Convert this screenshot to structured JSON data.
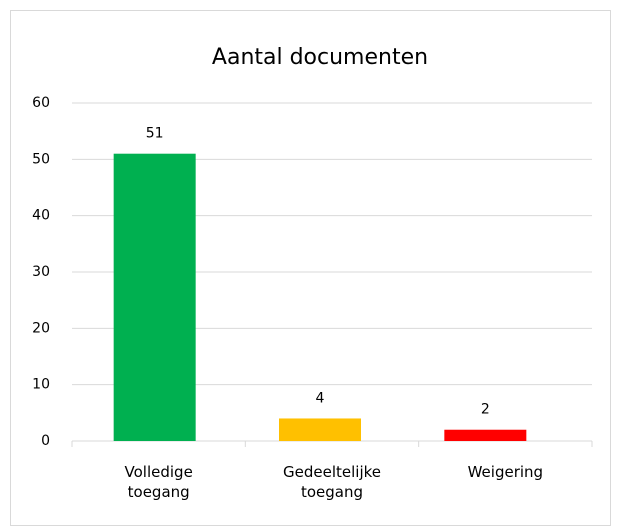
{
  "chart_data": {
    "type": "bar",
    "title": "Aantal documenten",
    "categories": [
      "Volledige toegang",
      "Gedeeltelijke toegang",
      "Weigering"
    ],
    "values": [
      51,
      4,
      2
    ],
    "colors": [
      "#00b050",
      "#ffc000",
      "#ff0000"
    ],
    "ylim": [
      0,
      60
    ],
    "yticks": [
      0,
      10,
      20,
      30,
      40,
      50,
      60
    ],
    "grid": true
  }
}
